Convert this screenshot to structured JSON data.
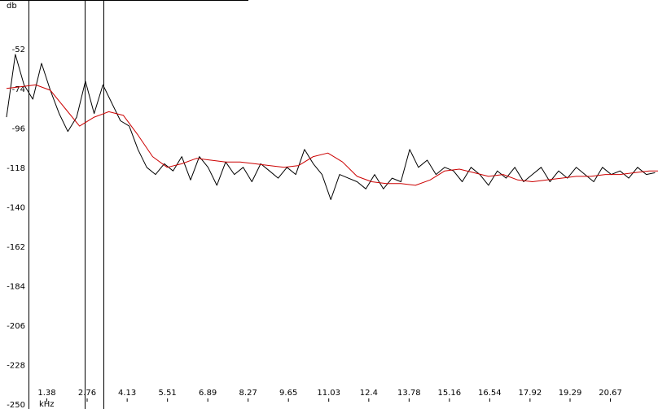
{
  "chart_data": {
    "type": "line",
    "ylabel": "db",
    "xlabel": "kHz",
    "xlim": [
      0,
      22.3
    ],
    "ylim": [
      -250,
      -46
    ],
    "y_ticks": [
      -52,
      -74,
      -96,
      -118,
      -140,
      -162,
      -184,
      -206,
      -228,
      -250
    ],
    "y_tick_labels": [
      "-52",
      "-74",
      "-96",
      "-118",
      "-140",
      "-162",
      "-184",
      "-206",
      "-228",
      "-250"
    ],
    "x_ticks": [
      1.38,
      2.76,
      4.13,
      5.51,
      6.89,
      8.27,
      9.65,
      11.03,
      12.4,
      13.78,
      15.16,
      16.54,
      17.92,
      19.29,
      20.67
    ],
    "x_tick_labels": [
      "1.38",
      "2.76",
      "4.13",
      "5.51",
      "6.89",
      "8.27",
      "9.65",
      "11.03",
      "12.4",
      "13.78",
      "15.16",
      "16.54",
      "17.92",
      "19.29",
      "20.67"
    ],
    "markers_khz": [
      2.67,
      3.32
    ],
    "grid": false,
    "series": [
      {
        "role": "spectrum",
        "color": "#000000",
        "x": [
          0.0,
          0.3,
          0.6,
          0.9,
          1.2,
          1.5,
          1.8,
          2.1,
          2.4,
          2.7,
          3.0,
          3.3,
          3.6,
          3.9,
          4.2,
          4.5,
          4.8,
          5.1,
          5.4,
          5.7,
          6.0,
          6.3,
          6.6,
          6.9,
          7.2,
          7.5,
          7.8,
          8.1,
          8.4,
          8.7,
          9.0,
          9.3,
          9.6,
          9.9,
          10.2,
          10.5,
          10.8,
          11.1,
          11.4,
          11.7,
          12.0,
          12.3,
          12.6,
          12.9,
          13.2,
          13.5,
          13.8,
          14.1,
          14.4,
          14.7,
          15.0,
          15.3,
          15.6,
          15.9,
          16.2,
          16.5,
          16.8,
          17.1,
          17.4,
          17.7,
          18.0,
          18.3,
          18.6,
          18.9,
          19.2,
          19.5,
          19.8,
          20.1,
          20.4,
          20.7,
          21.0,
          21.3,
          21.6,
          21.9,
          22.2
        ],
        "y": [
          -90,
          -55,
          -72,
          -80,
          -60,
          -75,
          -88,
          -98,
          -90,
          -70,
          -88,
          -72,
          -82,
          -92,
          -95,
          -108,
          -118,
          -122,
          -116,
          -120,
          -112,
          -125,
          -112,
          -118,
          -128,
          -115,
          -122,
          -118,
          -126,
          -116,
          -120,
          -124,
          -118,
          -122,
          -108,
          -116,
          -122,
          -136,
          -122,
          -124,
          -126,
          -130,
          -122,
          -130,
          -124,
          -126,
          -108,
          -118,
          -114,
          -122,
          -118,
          -120,
          -126,
          -118,
          -122,
          -128,
          -120,
          -124,
          -118,
          -126,
          -122,
          -118,
          -126,
          -120,
          -124,
          -118,
          -122,
          -126,
          -118,
          -122,
          -120,
          -124,
          -118,
          -122,
          -121
        ]
      },
      {
        "role": "smoothed",
        "color": "#cc0000",
        "x": [
          0.0,
          0.5,
          1.0,
          1.5,
          2.0,
          2.5,
          3.0,
          3.5,
          4.0,
          4.5,
          5.0,
          5.5,
          6.0,
          6.5,
          7.0,
          7.5,
          8.0,
          8.5,
          9.0,
          9.5,
          10.0,
          10.5,
          11.0,
          11.5,
          12.0,
          12.5,
          13.0,
          13.5,
          14.0,
          14.5,
          15.0,
          15.5,
          16.0,
          16.5,
          17.0,
          17.5,
          18.0,
          18.5,
          19.0,
          19.5,
          20.0,
          20.5,
          21.0,
          21.5,
          22.0,
          22.3
        ],
        "y": [
          -74,
          -73,
          -72,
          -75,
          -85,
          -95,
          -90,
          -87,
          -89,
          -100,
          -112,
          -118,
          -116,
          -113,
          -114,
          -115,
          -115,
          -116,
          -117,
          -118,
          -117,
          -112,
          -110,
          -115,
          -123,
          -126,
          -127,
          -127,
          -128,
          -125,
          -120,
          -119,
          -121,
          -123,
          -122,
          -125,
          -126,
          -125,
          -124,
          -123,
          -123,
          -122,
          -122,
          -121,
          -120,
          -120
        ]
      }
    ]
  }
}
